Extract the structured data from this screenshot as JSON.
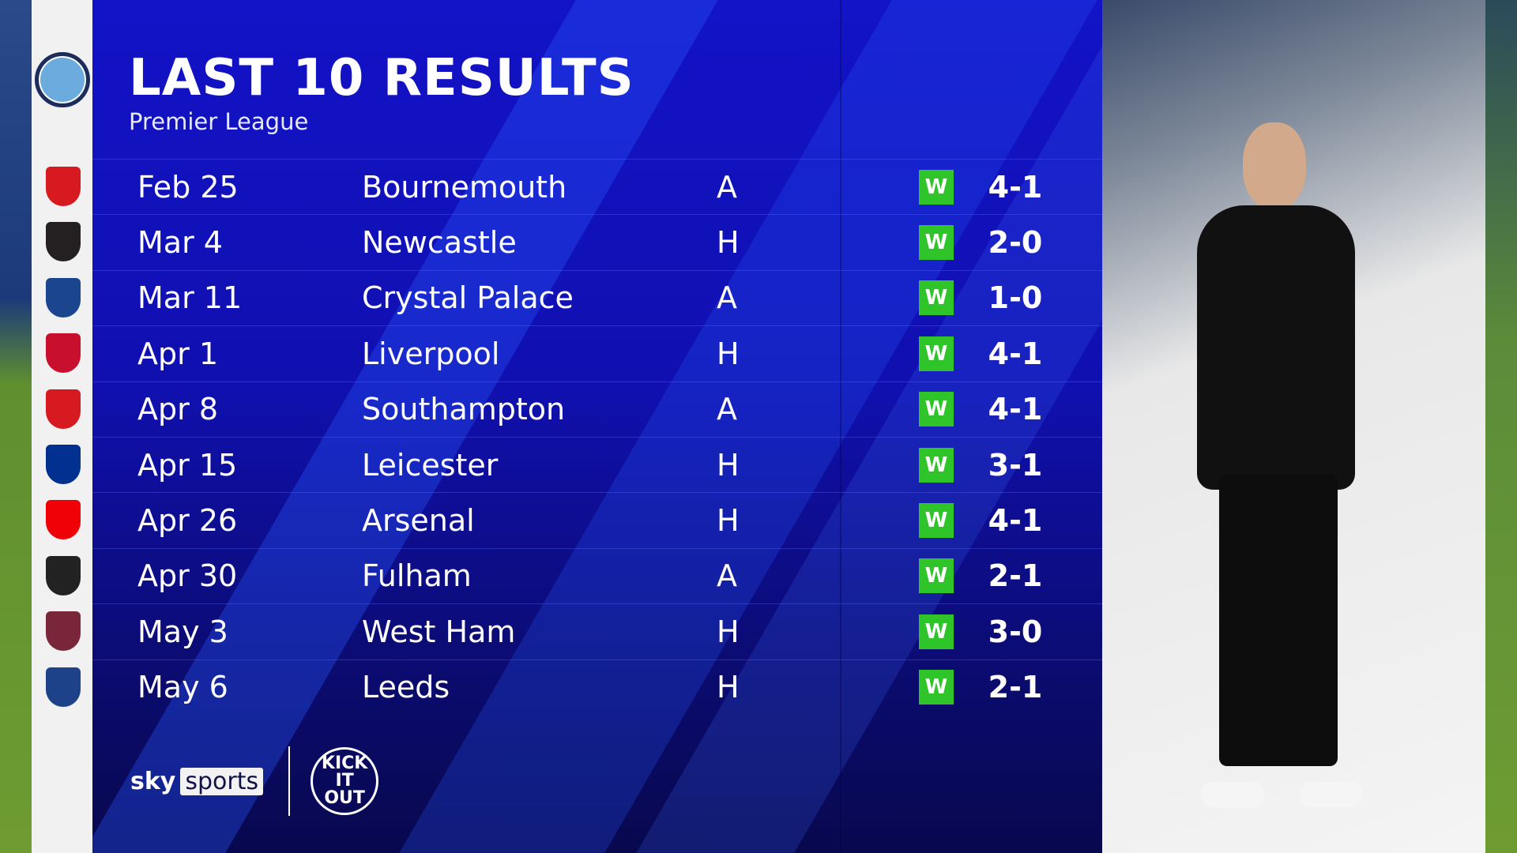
{
  "header": {
    "title": "LAST 10 RESULTS",
    "subtitle": "Premier League"
  },
  "team_crest": "manchester-city-crest",
  "colors": {
    "panel": "#1313c8",
    "win": "#2fc42a",
    "logo_column": "#f1f1f1"
  },
  "results": [
    {
      "date": "Feb 25",
      "opponent": "Bournemouth",
      "venue": "A",
      "result": "W",
      "score": "4-1",
      "crest_color": "#d71920"
    },
    {
      "date": "Mar 4",
      "opponent": "Newcastle",
      "venue": "H",
      "result": "W",
      "score": "2-0",
      "crest_color": "#241f20"
    },
    {
      "date": "Mar 11",
      "opponent": "Crystal Palace",
      "venue": "A",
      "result": "W",
      "score": "1-0",
      "crest_color": "#1b458f"
    },
    {
      "date": "Apr 1",
      "opponent": "Liverpool",
      "venue": "H",
      "result": "W",
      "score": "4-1",
      "crest_color": "#c8102e"
    },
    {
      "date": "Apr 8",
      "opponent": "Southampton",
      "venue": "A",
      "result": "W",
      "score": "4-1",
      "crest_color": "#d71920"
    },
    {
      "date": "Apr 15",
      "opponent": "Leicester",
      "venue": "H",
      "result": "W",
      "score": "3-1",
      "crest_color": "#003090"
    },
    {
      "date": "Apr 26",
      "opponent": "Arsenal",
      "venue": "H",
      "result": "W",
      "score": "4-1",
      "crest_color": "#ef0107"
    },
    {
      "date": "Apr 30",
      "opponent": "Fulham",
      "venue": "A",
      "result": "W",
      "score": "2-1",
      "crest_color": "#222222"
    },
    {
      "date": "May 3",
      "opponent": "West Ham",
      "venue": "H",
      "result": "W",
      "score": "3-0",
      "crest_color": "#7a263a"
    },
    {
      "date": "May 6",
      "opponent": "Leeds",
      "venue": "H",
      "result": "W",
      "score": "2-1",
      "crest_color": "#1d428a"
    }
  ],
  "footer": {
    "sky": "sky",
    "sports": "sports",
    "kick_it_out": "KICK IT OUT"
  }
}
